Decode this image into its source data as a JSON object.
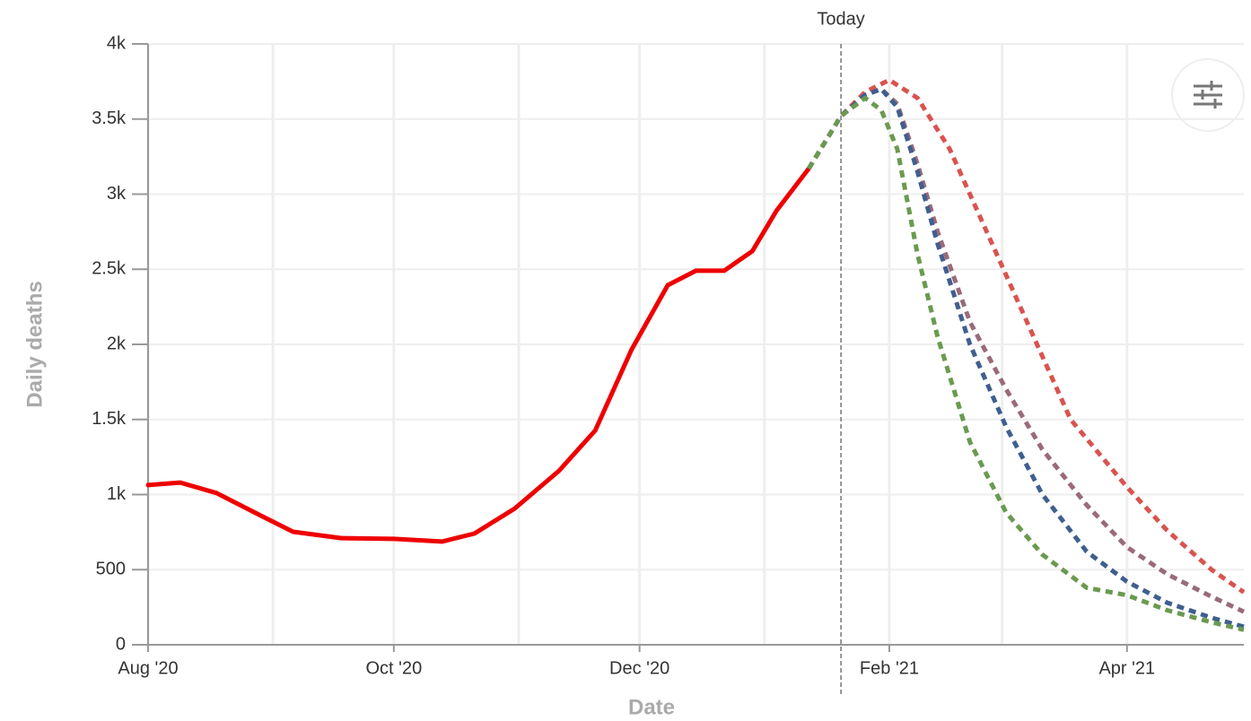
{
  "chart_data": {
    "type": "line",
    "y_label": "Daily deaths",
    "x_label": "Date",
    "annotation": "Today",
    "annotation_x": "2021-01-20",
    "xlim": [
      "2020-08-01",
      "2021-04-30"
    ],
    "xticks": [
      {
        "value": "2020-08-01",
        "label": "Aug '20"
      },
      {
        "value": "2020-10-01",
        "label": "Oct '20"
      },
      {
        "value": "2020-12-01",
        "label": "Dec '20"
      },
      {
        "value": "2021-02-01",
        "label": "Feb '21"
      },
      {
        "value": "2021-04-01",
        "label": "Apr '21"
      }
    ],
    "xgrid": [
      "2020-09-01",
      "2020-11-01",
      "2021-01-01",
      "2021-03-01"
    ],
    "ylim": [
      0,
      4000
    ],
    "yticks": [
      0,
      500,
      {
        "value": 1000,
        "label": "1k"
      },
      {
        "value": 1500,
        "label": "1.5k"
      },
      {
        "value": 2000,
        "label": "2k"
      },
      {
        "value": 2500,
        "label": "2.5k"
      },
      {
        "value": 3000,
        "label": "3k"
      },
      {
        "value": 3500,
        "label": "3.5k"
      },
      {
        "value": 4000,
        "label": "4k"
      }
    ],
    "grid": true,
    "series": [
      {
        "color": "#ee0000",
        "dashed": false,
        "x": [
          "2020-08-01",
          "2020-08-09",
          "2020-08-18",
          "2020-08-29",
          "2020-09-06",
          "2020-09-18",
          "2020-10-01",
          "2020-10-13",
          "2020-10-21",
          "2020-10-31",
          "2020-11-11",
          "2020-11-20",
          "2020-11-29",
          "2020-12-08",
          "2020-12-15",
          "2020-12-22",
          "2020-12-29",
          "2021-01-04",
          "2021-01-12"
        ],
        "values": [
          1063,
          1080,
          1010,
          860,
          752,
          710,
          705,
          687,
          740,
          907,
          1158,
          1427,
          1964,
          2394,
          2490,
          2490,
          2620,
          2890,
          3170
        ]
      },
      {
        "color": "#d9534f",
        "dashed": true,
        "x": [
          "2021-01-12",
          "2021-01-20",
          "2021-01-26",
          "2021-02-01",
          "2021-02-08",
          "2021-02-16",
          "2021-02-26",
          "2021-03-08",
          "2021-03-18",
          "2021-04-01",
          "2021-04-11",
          "2021-04-22",
          "2021-04-30"
        ],
        "values": [
          3170,
          3520,
          3680,
          3760,
          3640,
          3300,
          2700,
          2100,
          1500,
          1050,
          760,
          500,
          350
        ]
      },
      {
        "color": "#9a6a7a",
        "dashed": true,
        "x": [
          "2021-01-12",
          "2021-01-20",
          "2021-01-26",
          "2021-01-30",
          "2021-02-03",
          "2021-02-08",
          "2021-02-13",
          "2021-02-21",
          "2021-03-02",
          "2021-03-11",
          "2021-03-22",
          "2021-04-01",
          "2021-04-11",
          "2021-04-22",
          "2021-04-30"
        ],
        "values": [
          3170,
          3520,
          3660,
          3700,
          3600,
          3200,
          2750,
          2150,
          1700,
          1300,
          930,
          650,
          470,
          320,
          220
        ]
      },
      {
        "color": "#3f5f8f",
        "dashed": true,
        "x": [
          "2021-01-12",
          "2021-01-20",
          "2021-01-26",
          "2021-01-30",
          "2021-02-03",
          "2021-02-08",
          "2021-02-13",
          "2021-02-21",
          "2021-03-02",
          "2021-03-11",
          "2021-03-22",
          "2021-04-01",
          "2021-04-11",
          "2021-04-22",
          "2021-04-30"
        ],
        "values": [
          3170,
          3520,
          3660,
          3700,
          3580,
          3150,
          2670,
          2000,
          1450,
          1000,
          620,
          420,
          280,
          180,
          120
        ]
      },
      {
        "color": "#6a9a50",
        "dashed": true,
        "x": [
          "2021-01-12",
          "2021-01-20",
          "2021-01-26",
          "2021-01-30",
          "2021-02-03",
          "2021-02-08",
          "2021-02-13",
          "2021-02-21",
          "2021-03-02",
          "2021-03-11",
          "2021-03-22",
          "2021-04-01",
          "2021-04-11",
          "2021-04-22",
          "2021-04-30"
        ],
        "values": [
          3170,
          3520,
          3640,
          3560,
          3300,
          2600,
          2050,
          1350,
          880,
          600,
          380,
          330,
          230,
          150,
          100
        ]
      }
    ]
  }
}
